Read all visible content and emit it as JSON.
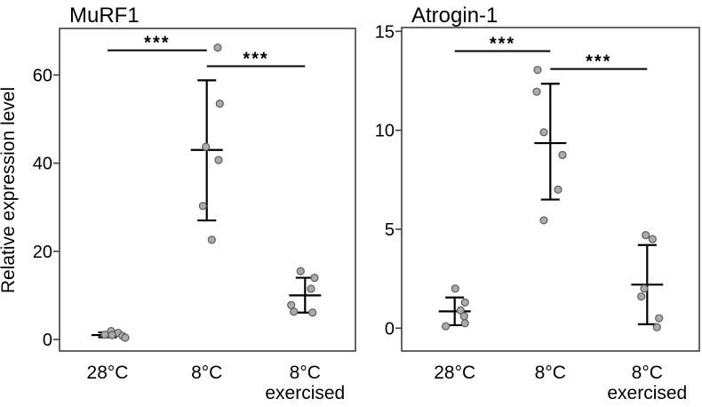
{
  "colors": {
    "point_fill": "#ababab",
    "point_stroke": "#5c5c5c",
    "line": "#000000",
    "box_border": "#404040",
    "text": "#000000",
    "background": "#ffffff"
  },
  "chart_data": [
    {
      "type": "scatter",
      "title": "MuRF1",
      "ylabel": "Relative expression level",
      "xlabel": "",
      "categories": [
        [
          "28°C"
        ],
        [
          "8°C"
        ],
        [
          "8°C",
          "exercised"
        ]
      ],
      "yticks": [
        0,
        20,
        40,
        60
      ],
      "ylim": [
        -2.6,
        70.6
      ],
      "grid": false,
      "legend": "none",
      "groups": [
        {
          "label": "28°C",
          "points": [
            1.9,
            1.5,
            1.1,
            1.0,
            0.8,
            0.4
          ],
          "dx": [
            4,
            12,
            -3,
            5,
            17,
            20
          ],
          "mean": 1.0,
          "err_low": 0.5,
          "err_high": 1.6
        },
        {
          "label": "8°C",
          "points": [
            66.2,
            53.5,
            43.7,
            40.7,
            30.3,
            22.6
          ],
          "dx": [
            12.3,
            14.6,
            -1,
            13.3,
            -4.4,
            5.6
          ],
          "mean": 43.0,
          "err_low": 27.0,
          "err_high": 58.8
        },
        {
          "label": "8°C exercised",
          "points": [
            15.5,
            14.0,
            11.5,
            7.8,
            6.3,
            6.1
          ],
          "dx": [
            -5,
            10.7,
            6.7,
            -15.6,
            -12.6,
            8.4
          ],
          "mean": 10.0,
          "err_low": 6.1,
          "err_high": 14.0
        }
      ],
      "significance": [
        {
          "from": 0,
          "to": 1,
          "label": "***",
          "y": 65.6
        },
        {
          "from": 1,
          "to": 2,
          "label": "***",
          "y": 62.0
        }
      ]
    },
    {
      "type": "scatter",
      "title": "Atrogin-1",
      "ylabel": "",
      "xlabel": "",
      "categories": [
        [
          "28°C"
        ],
        [
          "8°C"
        ],
        [
          "8°C",
          "exercised"
        ]
      ],
      "yticks": [
        0,
        5,
        10,
        15
      ],
      "ylim": [
        -1.2,
        15.2
      ],
      "grid": false,
      "legend": "none",
      "groups": [
        {
          "label": "28°C",
          "points": [
            2.0,
            1.3,
            0.9,
            0.6,
            0.25,
            0.1
          ],
          "dx": [
            0.6,
            11.6,
            6.6,
            10.6,
            11.6,
            -10
          ],
          "mean": 0.85,
          "err_low": 0.15,
          "err_high": 1.55
        },
        {
          "label": "8°C",
          "points": [
            13.05,
            11.95,
            9.9,
            8.75,
            7.0,
            5.45
          ],
          "dx": [
            -14.3,
            -15.3,
            -7.3,
            13.7,
            8.7,
            -7.3
          ],
          "mean": 9.35,
          "err_low": 6.5,
          "err_high": 12.35
        },
        {
          "label": "8°C exercised",
          "points": [
            4.7,
            4.5,
            2.0,
            1.6,
            0.5,
            0.05
          ],
          "dx": [
            -1.6,
            6,
            -3.3,
            -6.6,
            13.4,
            11
          ],
          "mean": 2.2,
          "err_low": 0.2,
          "err_high": 4.2
        }
      ],
      "significance": [
        {
          "from": 0,
          "to": 1,
          "label": "***",
          "y": 14.0
        },
        {
          "from": 1,
          "to": 2,
          "label": "***",
          "y": 13.1
        }
      ]
    }
  ]
}
